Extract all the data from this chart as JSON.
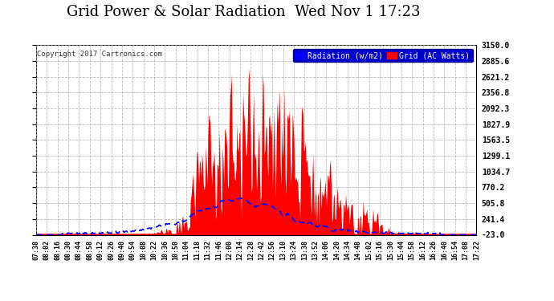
{
  "title": "Grid Power & Solar Radiation  Wed Nov 1 17:23",
  "copyright": "Copyright 2017 Cartronics.com",
  "legend_labels": [
    "Radiation (w/m2)",
    "Grid (AC Watts)"
  ],
  "legend_colors": [
    "#0000ff",
    "#ff0000"
  ],
  "yticks": [
    3150.0,
    2885.6,
    2621.2,
    2356.8,
    2092.3,
    1827.9,
    1563.5,
    1299.1,
    1034.7,
    770.2,
    505.8,
    241.4,
    -23.0
  ],
  "ymin": -23.0,
  "ymax": 3150.0,
  "background_color": "#ffffff",
  "plot_bg_color": "#ffffff",
  "grid_color": "#aaaaaa",
  "fill_color": "#ff0000",
  "line_color": "#0000ff",
  "title_fontsize": 13,
  "n_points": 580,
  "xtick_labels": [
    "07:38",
    "08:02",
    "08:16",
    "08:30",
    "08:44",
    "08:58",
    "09:12",
    "09:26",
    "09:40",
    "09:54",
    "10:08",
    "10:22",
    "10:36",
    "10:50",
    "11:04",
    "11:18",
    "11:32",
    "11:46",
    "12:00",
    "12:14",
    "12:28",
    "12:42",
    "12:56",
    "13:10",
    "13:24",
    "13:38",
    "13:52",
    "14:06",
    "14:20",
    "14:34",
    "14:48",
    "15:02",
    "15:16",
    "15:30",
    "15:44",
    "15:58",
    "16:12",
    "16:26",
    "16:40",
    "16:54",
    "17:08",
    "17:22"
  ]
}
